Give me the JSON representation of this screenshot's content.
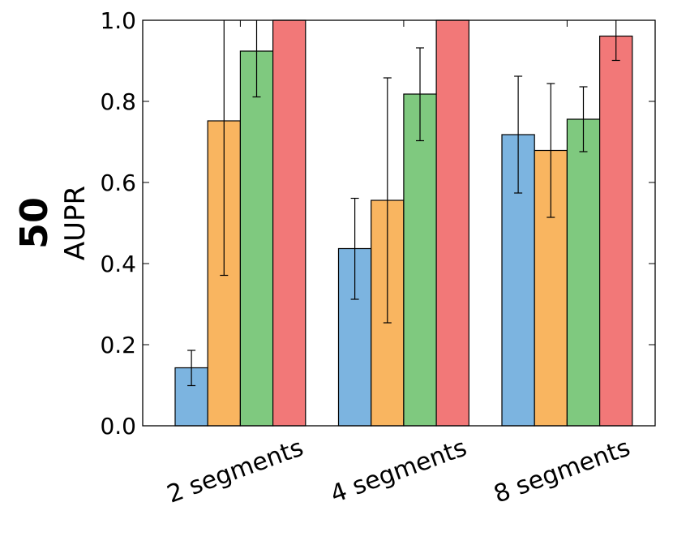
{
  "chart_data": {
    "type": "bar",
    "panel_label": "50",
    "ylabel": "AUPR",
    "xlabel": "",
    "ylim": [
      0,
      1.0
    ],
    "yticks": [
      "0.0",
      "0.2",
      "0.4",
      "0.6",
      "0.8",
      "1.0"
    ],
    "categories": [
      "2 segments",
      "4 segments",
      "8 segments"
    ],
    "series": [
      {
        "name": "blue",
        "color": "#7cb4e0",
        "values": [
          0.143,
          0.437,
          0.718
        ],
        "err_low": [
          0.099,
          0.312,
          0.574
        ],
        "err_high": [
          0.186,
          0.561,
          0.862
        ]
      },
      {
        "name": "orange",
        "color": "#f9b560",
        "values": [
          0.752,
          0.556,
          0.679
        ],
        "err_low": [
          0.371,
          0.254,
          0.514
        ],
        "err_high": [
          1.0,
          0.858,
          0.844
        ]
      },
      {
        "name": "green",
        "color": "#7fc97f",
        "values": [
          0.924,
          0.818,
          0.756
        ],
        "err_low": [
          0.811,
          0.703,
          0.676
        ],
        "err_high": [
          1.0,
          0.932,
          0.836
        ]
      },
      {
        "name": "red",
        "color": "#f27878",
        "values": [
          1.0,
          1.0,
          0.961
        ],
        "err_low": [
          1.0,
          1.0,
          0.901
        ],
        "err_high": [
          1.0,
          1.0,
          1.0
        ]
      }
    ]
  }
}
